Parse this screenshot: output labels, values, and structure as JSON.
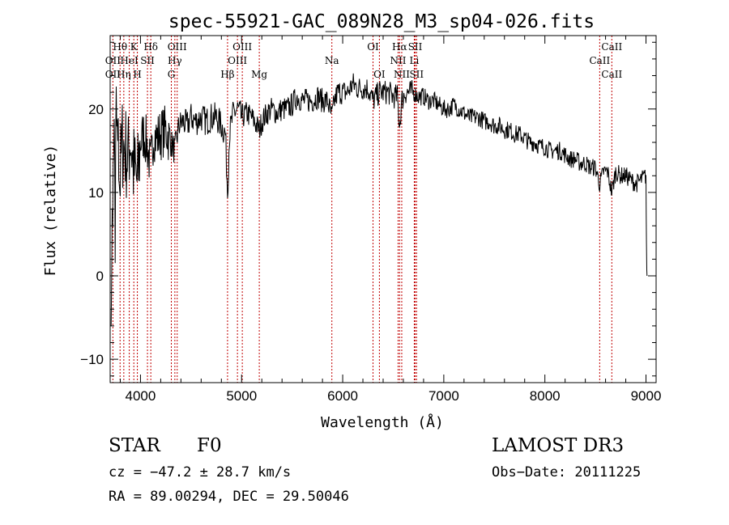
{
  "chart_data": {
    "type": "line",
    "title": "spec-55921-GAC_089N28_M3_sp04-026.fits",
    "xlabel": "Wavelength (Å)",
    "ylabel": "Flux (relative)",
    "xlim": [
      3700,
      9100
    ],
    "ylim": [
      -12.8,
      28.8
    ],
    "x_ticks": [
      4000,
      5000,
      6000,
      7000,
      8000,
      9000
    ],
    "y_ticks": [
      -10,
      0,
      10,
      20
    ],
    "grid": false,
    "legend": "none",
    "line_color": "#000000",
    "marker_color": "#c00000",
    "spectrum": [
      [
        3710,
        0
      ],
      [
        3725,
        8
      ],
      [
        3740,
        15
      ],
      [
        3760,
        19
      ],
      [
        3780,
        14
      ],
      [
        3800,
        12
      ],
      [
        3820,
        16
      ],
      [
        3850,
        15
      ],
      [
        3880,
        14
      ],
      [
        3900,
        17
      ],
      [
        3930,
        13
      ],
      [
        3950,
        12
      ],
      [
        3970,
        11
      ],
      [
        4000,
        16
      ],
      [
        4030,
        17
      ],
      [
        4060,
        16
      ],
      [
        4100,
        13
      ],
      [
        4130,
        17
      ],
      [
        4160,
        16.5
      ],
      [
        4200,
        17
      ],
      [
        4250,
        17.5
      ],
      [
        4300,
        16
      ],
      [
        4340,
        15
      ],
      [
        4380,
        18
      ],
      [
        4420,
        18.5
      ],
      [
        4460,
        18
      ],
      [
        4500,
        19
      ],
      [
        4550,
        18.5
      ],
      [
        4600,
        19
      ],
      [
        4650,
        18.5
      ],
      [
        4700,
        19
      ],
      [
        4750,
        19
      ],
      [
        4800,
        18
      ],
      [
        4840,
        17
      ],
      [
        4861,
        10
      ],
      [
        4880,
        17
      ],
      [
        4920,
        19.5
      ],
      [
        4960,
        20
      ],
      [
        5000,
        19
      ],
      [
        5050,
        19.5
      ],
      [
        5100,
        19
      ],
      [
        5150,
        18
      ],
      [
        5175,
        17.5
      ],
      [
        5200,
        18.5
      ],
      [
        5250,
        19.5
      ],
      [
        5300,
        20
      ],
      [
        5350,
        19.5
      ],
      [
        5400,
        20
      ],
      [
        5450,
        20
      ],
      [
        5500,
        20.5
      ],
      [
        5550,
        21.5
      ],
      [
        5600,
        21
      ],
      [
        5650,
        21
      ],
      [
        5700,
        21
      ],
      [
        5750,
        21.5
      ],
      [
        5800,
        21
      ],
      [
        5850,
        21
      ],
      [
        5893,
        19
      ],
      [
        5920,
        21
      ],
      [
        5950,
        22
      ],
      [
        6000,
        22
      ],
      [
        6050,
        22
      ],
      [
        6100,
        23
      ],
      [
        6150,
        22.5
      ],
      [
        6200,
        22.5
      ],
      [
        6250,
        22.5
      ],
      [
        6300,
        21
      ],
      [
        6330,
        21.5
      ],
      [
        6363,
        22
      ],
      [
        6400,
        22
      ],
      [
        6450,
        22
      ],
      [
        6500,
        21.5
      ],
      [
        6540,
        21.5
      ],
      [
        6563,
        18
      ],
      [
        6585,
        21
      ],
      [
        6620,
        22
      ],
      [
        6650,
        22
      ],
      [
        6700,
        22
      ],
      [
        6750,
        21.5
      ],
      [
        6800,
        21.5
      ],
      [
        6850,
        21
      ],
      [
        6900,
        21
      ],
      [
        6950,
        20.5
      ],
      [
        7000,
        20
      ],
      [
        7050,
        20
      ],
      [
        7100,
        20.5
      ],
      [
        7150,
        20
      ],
      [
        7200,
        19.5
      ],
      [
        7250,
        19
      ],
      [
        7300,
        19
      ],
      [
        7350,
        19
      ],
      [
        7400,
        18.5
      ],
      [
        7450,
        18.5
      ],
      [
        7500,
        18
      ],
      [
        7550,
        18
      ],
      [
        7600,
        17.5
      ],
      [
        7650,
        17.5
      ],
      [
        7700,
        17
      ],
      [
        7750,
        17
      ],
      [
        7800,
        16.5
      ],
      [
        7850,
        16
      ],
      [
        7900,
        16
      ],
      [
        7950,
        15.5
      ],
      [
        8000,
        15.5
      ],
      [
        8050,
        15
      ],
      [
        8100,
        15
      ],
      [
        8150,
        15
      ],
      [
        8200,
        14.5
      ],
      [
        8250,
        14
      ],
      [
        8300,
        14
      ],
      [
        8350,
        13.5
      ],
      [
        8400,
        13.5
      ],
      [
        8450,
        13
      ],
      [
        8500,
        13
      ],
      [
        8542,
        11
      ],
      [
        8580,
        12.5
      ],
      [
        8620,
        12.5
      ],
      [
        8662,
        10
      ],
      [
        8700,
        12.5
      ],
      [
        8750,
        12
      ],
      [
        8800,
        12
      ],
      [
        8850,
        11.5
      ],
      [
        8900,
        11
      ],
      [
        8950,
        11.5
      ],
      [
        9000,
        12
      ],
      [
        9005,
        3
      ],
      [
        9010,
        0
      ]
    ],
    "line_markers": [
      {
        "label": "Hθ",
        "x": 3798,
        "row": 1
      },
      {
        "label": "OII",
        "x": 3727,
        "row": 2
      },
      {
        "label": "OII",
        "x": 3727,
        "row": 3
      },
      {
        "label": "Hη",
        "x": 3835,
        "row": 3
      },
      {
        "label": "HeI",
        "x": 3889,
        "row": 2
      },
      {
        "label": "K",
        "x": 3934,
        "row": 1
      },
      {
        "label": "H",
        "x": 3969,
        "row": 3
      },
      {
        "label": "SII",
        "x": 4069,
        "row": 2
      },
      {
        "label": "Hδ",
        "x": 4102,
        "row": 1
      },
      {
        "label": "OIII",
        "x": 4363,
        "row": 1
      },
      {
        "label": "Hγ",
        "x": 4340,
        "row": 2
      },
      {
        "label": "G",
        "x": 4305,
        "row": 3
      },
      {
        "label": "Hβ",
        "x": 4861,
        "row": 3
      },
      {
        "label": "OIII",
        "x": 5007,
        "row": 1
      },
      {
        "label": "OIII",
        "x": 4959,
        "row": 2
      },
      {
        "label": "Mg",
        "x": 5175,
        "row": 3
      },
      {
        "label": "Na",
        "x": 5893,
        "row": 2
      },
      {
        "label": "OI",
        "x": 6300,
        "row": 1
      },
      {
        "label": "OI",
        "x": 6363,
        "row": 3
      },
      {
        "label": "Hα",
        "x": 6563,
        "row": 1
      },
      {
        "label": "NII",
        "x": 6548,
        "row": 2
      },
      {
        "label": "NII",
        "x": 6584,
        "row": 3
      },
      {
        "label": "SII",
        "x": 6717,
        "row": 1
      },
      {
        "label": "Li",
        "x": 6708,
        "row": 2
      },
      {
        "label": "SII",
        "x": 6731,
        "row": 3
      },
      {
        "label": "CaII",
        "x": 8662,
        "row": 1
      },
      {
        "label": "CaII",
        "x": 8542,
        "row": 2
      },
      {
        "label": "CaII",
        "x": 8662,
        "row": 3
      }
    ]
  },
  "info": {
    "class": "STAR",
    "subclass": "F0",
    "survey": "LAMOST DR3",
    "cz": "cz = −47.2 ± 28.7 km/s",
    "obs_date": "Obs−Date: 20111225",
    "coords": "RA =  89.00294, DEC =  29.50046"
  }
}
